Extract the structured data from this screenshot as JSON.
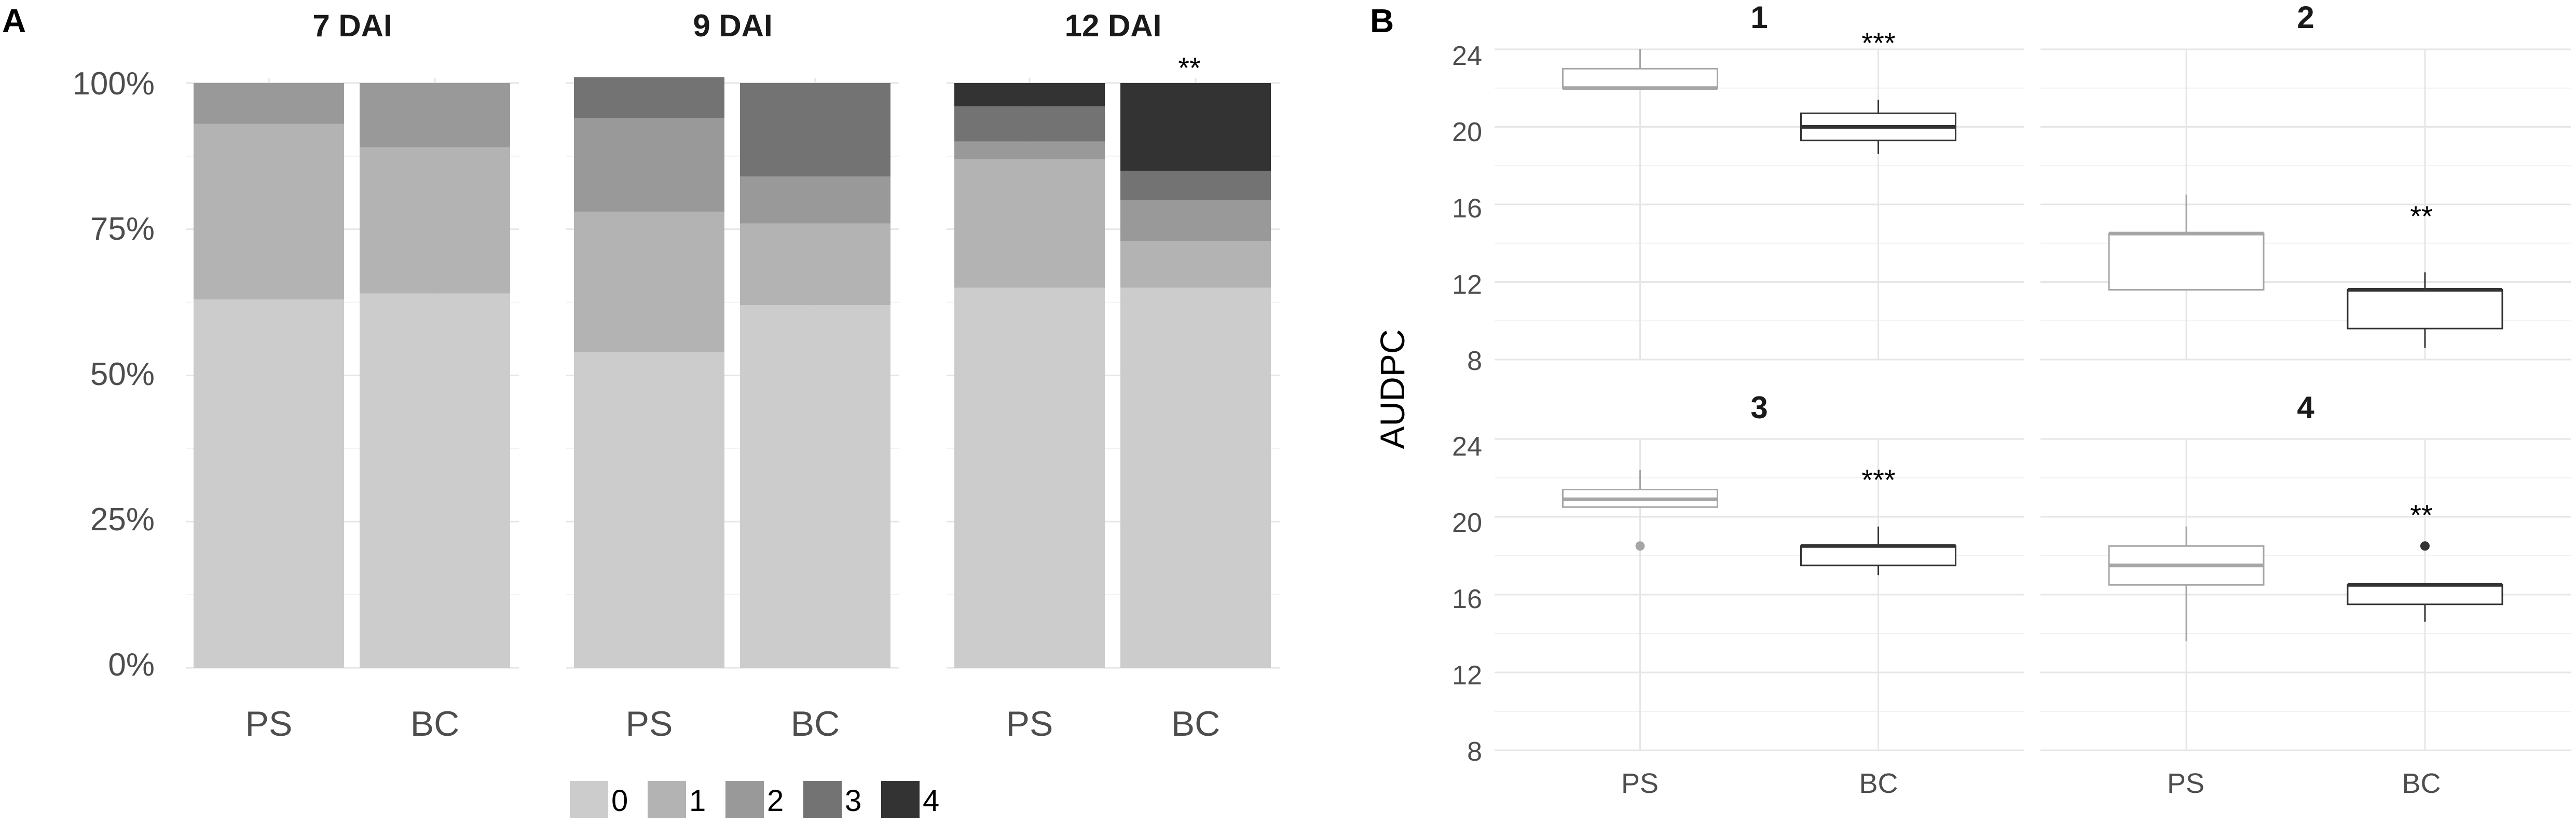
{
  "chart_data": [
    {
      "panel": "A",
      "type": "bar",
      "stacked": true,
      "percent": true,
      "facets": [
        "7 DAI",
        "9 DAI",
        "12 DAI"
      ],
      "categories": [
        "PS",
        "BC"
      ],
      "y_ticks": [
        "0%",
        "25%",
        "50%",
        "75%",
        "100%"
      ],
      "ylim": [
        0,
        100
      ],
      "series": [
        {
          "name": "0",
          "color": "#cccccc",
          "values": [
            [
              63,
              64
            ],
            [
              54,
              62
            ],
            [
              65,
              65
            ]
          ]
        },
        {
          "name": "1",
          "color": "#b3b3b3",
          "values": [
            [
              30,
              25
            ],
            [
              24,
              14
            ],
            [
              22,
              8
            ]
          ]
        },
        {
          "name": "2",
          "color": "#999999",
          "values": [
            [
              7,
              11
            ],
            [
              16,
              8
            ],
            [
              3,
              7
            ]
          ]
        },
        {
          "name": "3",
          "color": "#737373",
          "values": [
            [
              0,
              0
            ],
            [
              7,
              16
            ],
            [
              6,
              5
            ]
          ]
        },
        {
          "name": "4",
          "color": "#333333",
          "values": [
            [
              0,
              0
            ],
            [
              0,
              0
            ],
            [
              4,
              15
            ]
          ]
        }
      ],
      "annotations": [
        {
          "facet": 2,
          "category": 1,
          "text": "**"
        }
      ],
      "legend_position": "bottom"
    },
    {
      "panel": "B",
      "type": "boxplot",
      "ylabel": "AUDPC",
      "ylim": [
        8,
        24
      ],
      "y_ticks": [
        8,
        12,
        16,
        20,
        24
      ],
      "categories": [
        "PS",
        "BC"
      ],
      "facets": [
        {
          "title": "1",
          "boxes": [
            {
              "group": "PS",
              "color": "#a6a6a6",
              "min": 22,
              "q1": 22,
              "median": 22,
              "q3": 23,
              "max": 24,
              "outliers": []
            },
            {
              "group": "BC",
              "color": "#333333",
              "min": 18.6,
              "q1": 19.3,
              "median": 20,
              "q3": 20.7,
              "max": 21.4,
              "outliers": []
            }
          ],
          "annotation": "***"
        },
        {
          "title": "2",
          "boxes": [
            {
              "group": "PS",
              "color": "#a6a6a6",
              "min": 11.6,
              "q1": 11.6,
              "median": 14.5,
              "q3": 14.5,
              "max": 16.5,
              "outliers": []
            },
            {
              "group": "BC",
              "color": "#333333",
              "min": 8.6,
              "q1": 9.6,
              "median": 11.6,
              "q3": 11.6,
              "max": 12.5,
              "outliers": []
            }
          ],
          "annotation": "**"
        },
        {
          "title": "3",
          "boxes": [
            {
              "group": "PS",
              "color": "#a6a6a6",
              "min": 20.5,
              "q1": 20.5,
              "median": 20.9,
              "q3": 21.4,
              "max": 22.4,
              "outliers": [
                18.5
              ]
            },
            {
              "group": "BC",
              "color": "#333333",
              "min": 17,
              "q1": 17.5,
              "median": 18.5,
              "q3": 18.5,
              "max": 19.5,
              "outliers": []
            }
          ],
          "annotation": "***"
        },
        {
          "title": "4",
          "boxes": [
            {
              "group": "PS",
              "color": "#a6a6a6",
              "min": 13.6,
              "q1": 16.5,
              "median": 17.5,
              "q3": 18.5,
              "max": 19.5,
              "outliers": []
            },
            {
              "group": "BC",
              "color": "#333333",
              "min": 14.6,
              "q1": 15.5,
              "median": 16.5,
              "q3": 16.5,
              "max": 16.5,
              "outliers": [
                18.5
              ]
            }
          ],
          "annotation": "**"
        }
      ]
    }
  ]
}
